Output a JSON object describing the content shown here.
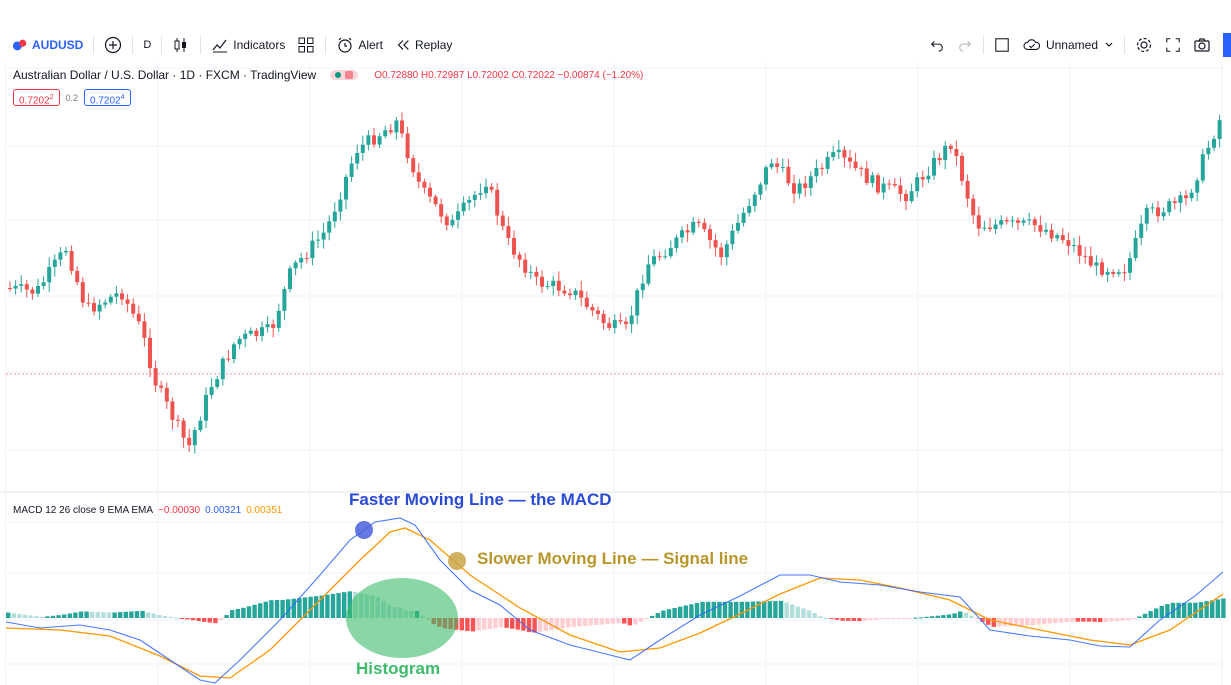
{
  "toolbar": {
    "symbol": "AUDUSD",
    "interval": "D",
    "indicators_label": "Indicators",
    "alert_label": "Alert",
    "replay_label": "Replay",
    "layout_name": "Unnamed"
  },
  "legend": {
    "title": "Australian Dollar / U.S. Dollar · 1D · FXCM · TradingView",
    "open": "O0.72880",
    "high": "H0.72987",
    "low": "L0.72002",
    "close": "C0.72022",
    "change": "−0.00874 (−1.20%)",
    "bid": "0.7202",
    "bid_sup": "2",
    "spread": "0.2",
    "ask": "0.7202",
    "ask_sup": "4"
  },
  "macd": {
    "label": "MACD 12 26 close 9 EMA EMA",
    "hist_value": "−0.00030",
    "macd_value": "0.00321",
    "signal_value": "0.00351"
  },
  "annotations": {
    "faster_line": "Faster Moving Line — the MACD",
    "slower_line": "Slower Moving Line — Signal line",
    "histogram": "Histogram"
  },
  "colors": {
    "up": "#26a69a",
    "down": "#ef5350",
    "macd_line": "#2962ff",
    "signal_line": "#ff9800",
    "annotation_blue": "#2a4ad8",
    "annotation_gold": "#b8962c",
    "annotation_green": "#3dbb6a"
  }
}
